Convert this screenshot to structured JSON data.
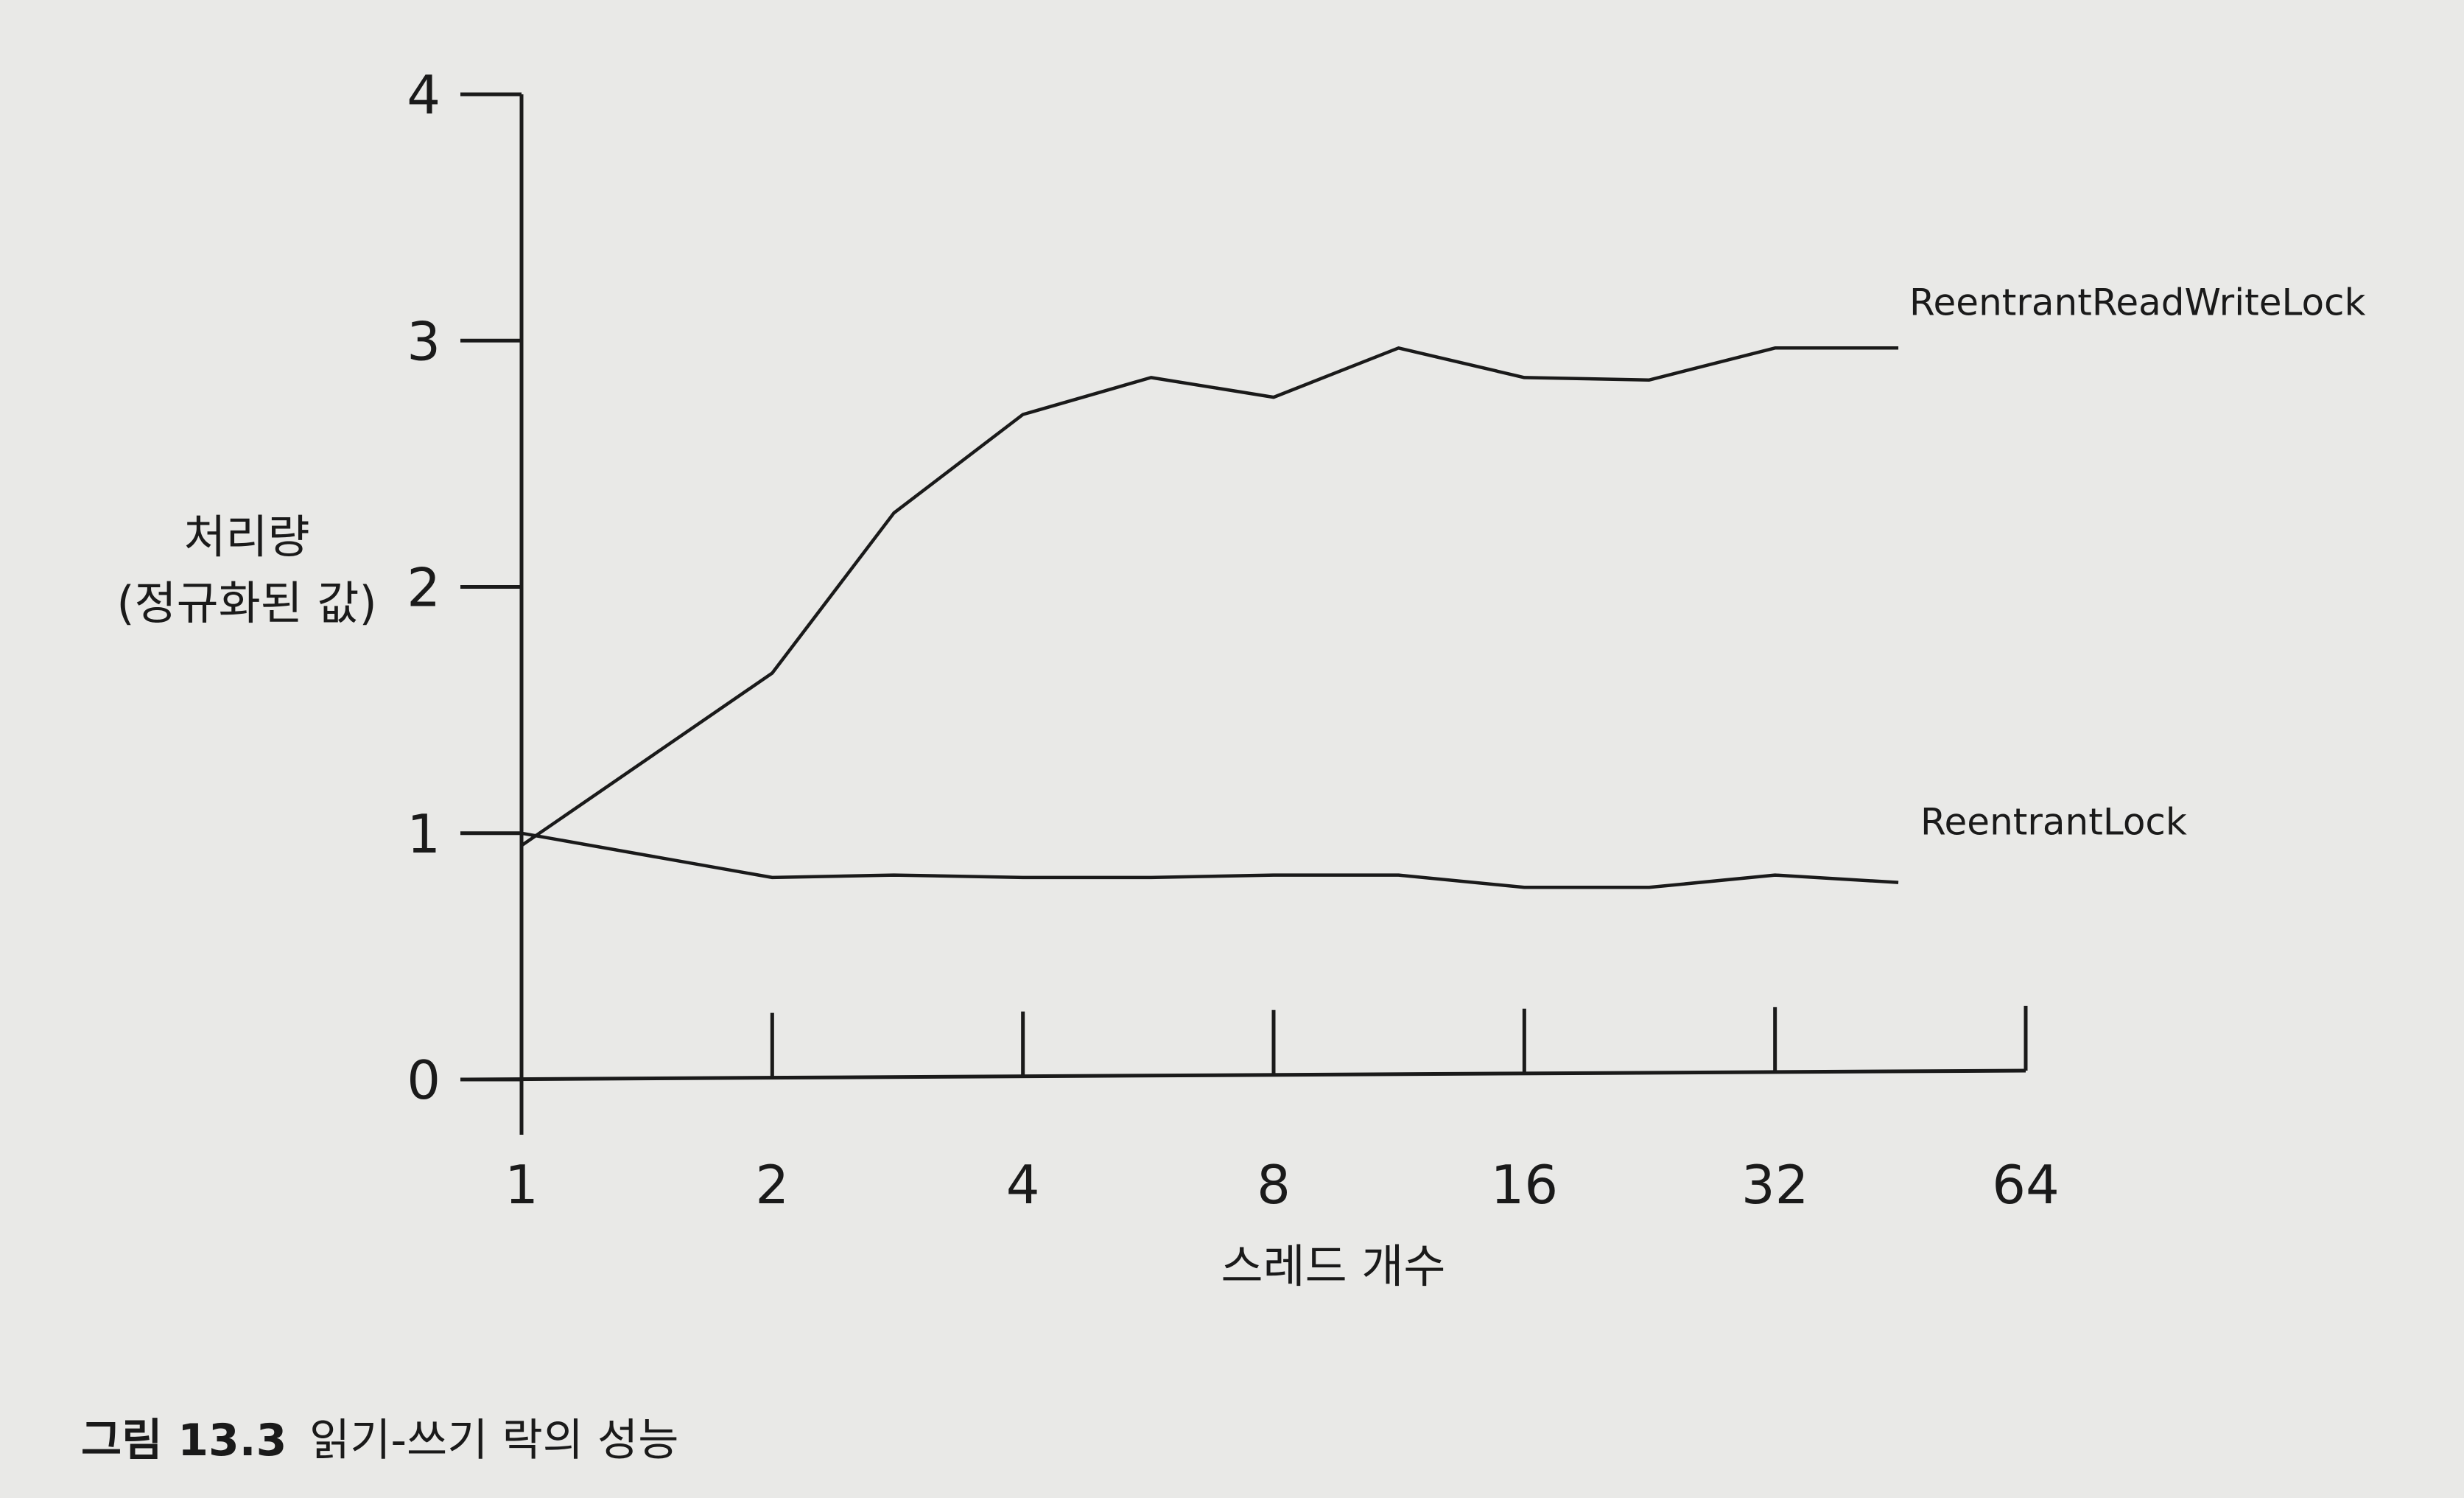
{
  "figure": {
    "caption_prefix": "그림 13.3",
    "caption_text": "읽기-쓰기 락의 성능"
  },
  "chart_data": {
    "type": "line",
    "title": "",
    "xlabel": "스레드 개수",
    "ylabel_lines": [
      "처리량",
      "(정규화된 값)"
    ],
    "x_scale": "log2",
    "x_ticks": [
      1,
      2,
      4,
      8,
      16,
      32,
      64
    ],
    "x_tick_labels": [
      "1",
      "2",
      "4",
      "8",
      "16",
      "32",
      "64"
    ],
    "y_ticks": [
      0,
      1,
      2,
      3,
      4
    ],
    "y_tick_labels": [
      "0",
      "1",
      "2",
      "3",
      "4"
    ],
    "ylim": [
      0,
      4
    ],
    "xlim": [
      1,
      64
    ],
    "grid": false,
    "legend": "inline labels at line ends",
    "series": [
      {
        "name": "ReentrantReadWriteLock",
        "color": "#1a1a1a",
        "points": [
          {
            "x": 1,
            "y": 0.95
          },
          {
            "x": 2,
            "y": 1.65
          },
          {
            "x": 2.8,
            "y": 2.3
          },
          {
            "x": 4,
            "y": 2.7
          },
          {
            "x": 5.7,
            "y": 2.85
          },
          {
            "x": 8,
            "y": 2.77
          },
          {
            "x": 11.3,
            "y": 2.97
          },
          {
            "x": 16,
            "y": 2.85
          },
          {
            "x": 22.6,
            "y": 2.84
          },
          {
            "x": 32,
            "y": 2.97
          },
          {
            "x": 45,
            "y": 2.97
          }
        ]
      },
      {
        "name": "ReentrantLock",
        "color": "#1a1a1a",
        "points": [
          {
            "x": 1,
            "y": 1.0
          },
          {
            "x": 2,
            "y": 0.82
          },
          {
            "x": 2.8,
            "y": 0.83
          },
          {
            "x": 4,
            "y": 0.82
          },
          {
            "x": 5.7,
            "y": 0.82
          },
          {
            "x": 8,
            "y": 0.83
          },
          {
            "x": 11.3,
            "y": 0.83
          },
          {
            "x": 16,
            "y": 0.78
          },
          {
            "x": 22.6,
            "y": 0.78
          },
          {
            "x": 32,
            "y": 0.83
          },
          {
            "x": 45,
            "y": 0.8
          }
        ]
      }
    ]
  }
}
